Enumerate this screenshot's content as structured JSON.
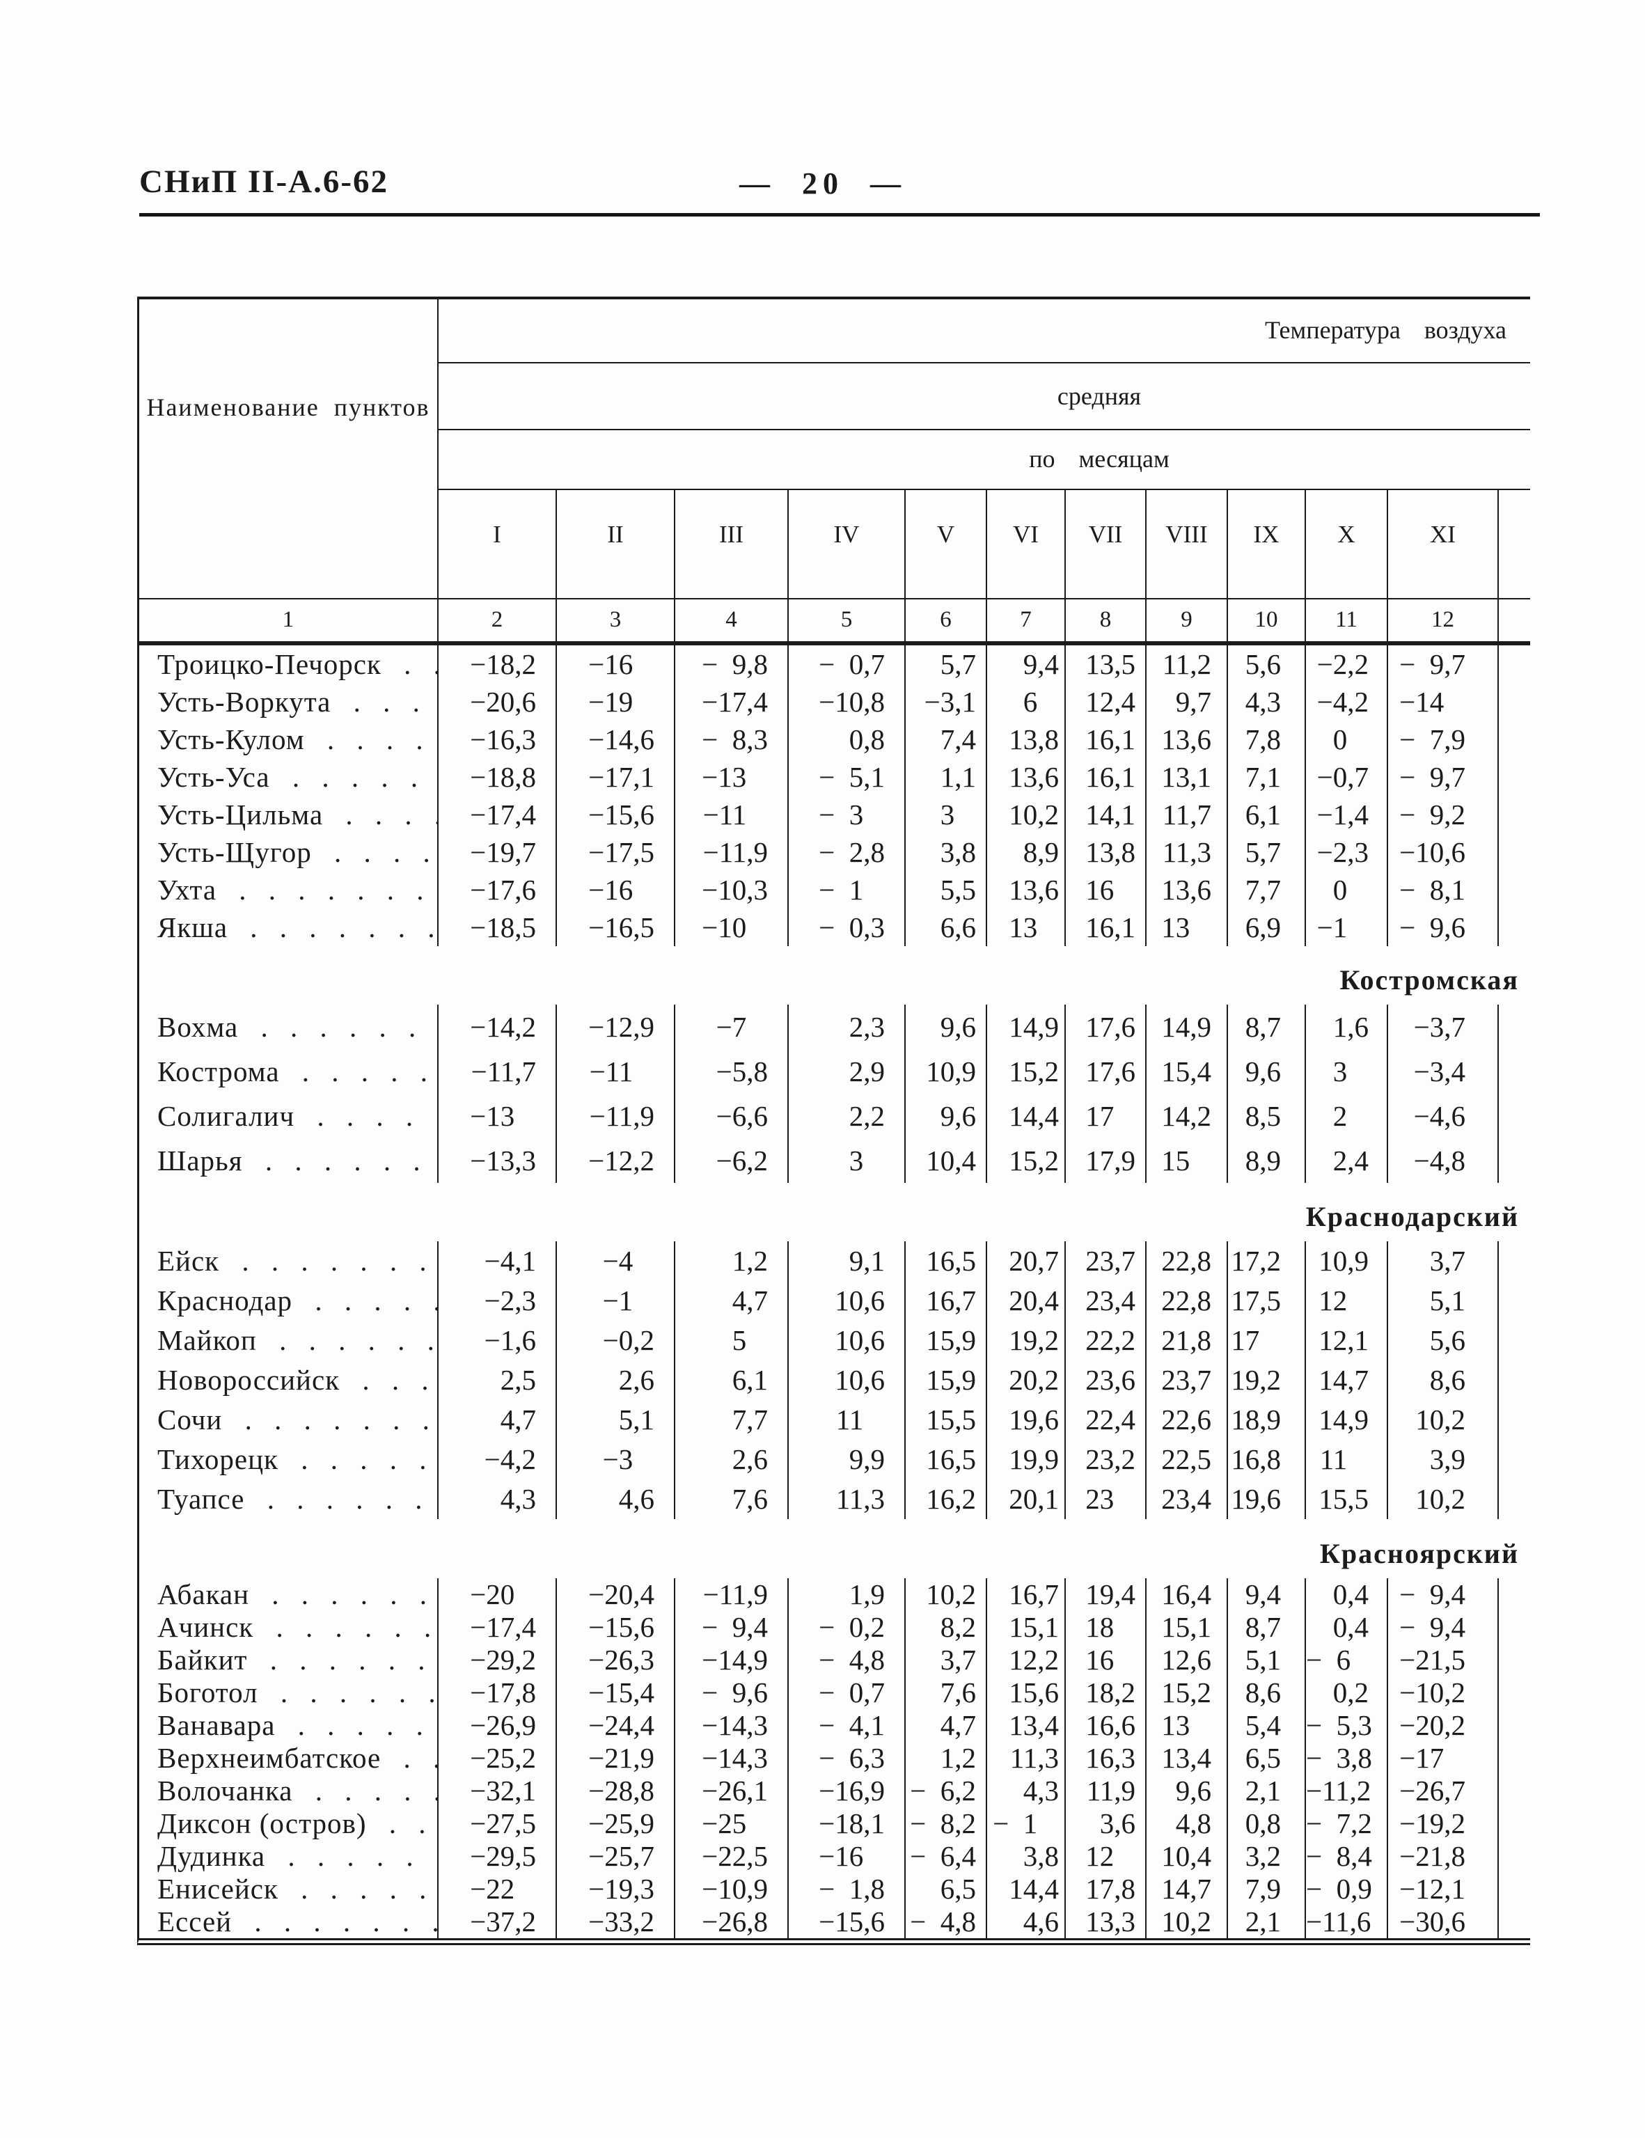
{
  "doc": {
    "code": "СНиП II-А.6-62",
    "page": "—  20  —"
  },
  "table": {
    "name_header": "Наименование  пунктов",
    "temp_header": "Температура  воздуха",
    "avg_header": "средняя",
    "by_months_header": "по  месяцам",
    "months": [
      "I",
      "II",
      "III",
      "IV",
      "V",
      "VI",
      "VII",
      "VIII",
      "IX",
      "X",
      "XI"
    ],
    "col_numbers": [
      "1",
      "2",
      "3",
      "4",
      "5",
      "6",
      "7",
      "8",
      "9",
      "10",
      "11",
      "12"
    ],
    "groups": [
      {
        "label": "",
        "rows": [
          {
            "name": "Троицко-Печорск",
            "values": [
              "−18,2",
              "−16",
              "− 9,8",
              "− 0,7",
              "5,7",
              "9,4",
              "13,5",
              "11,2",
              "5,6",
              "−2,2",
              "− 9,7"
            ]
          },
          {
            "name": "Усть-Воркута",
            "values": [
              "−20,6",
              "−19",
              "−17,4",
              "−10,8",
              "−3,1",
              "6",
              "12,4",
              "9,7",
              "4,3",
              "−4,2",
              "−14"
            ]
          },
          {
            "name": "Усть-Кулом",
            "values": [
              "−16,3",
              "−14,6",
              "− 8,3",
              "0,8",
              "7,4",
              "13,8",
              "16,1",
              "13,6",
              "7,8",
              "0",
              "− 7,9"
            ]
          },
          {
            "name": "Усть-Уса",
            "values": [
              "−18,8",
              "−17,1",
              "−13",
              "− 5,1",
              "1,1",
              "13,6",
              "16,1",
              "13,1",
              "7,1",
              "−0,7",
              "− 9,7"
            ]
          },
          {
            "name": "Усть-Цильма",
            "values": [
              "−17,4",
              "−15,6",
              "−11",
              "− 3",
              "3",
              "10,2",
              "14,1",
              "11,7",
              "6,1",
              "−1,4",
              "− 9,2"
            ]
          },
          {
            "name": "Усть-Щугор",
            "values": [
              "−19,7",
              "−17,5",
              "−11,9",
              "− 2,8",
              "3,8",
              "8,9",
              "13,8",
              "11,3",
              "5,7",
              "−2,3",
              "−10,6"
            ]
          },
          {
            "name": "Ухта",
            "values": [
              "−17,6",
              "−16",
              "−10,3",
              "− 1",
              "5,5",
              "13,6",
              "16",
              "13,6",
              "7,7",
              "0",
              "− 8,1"
            ]
          },
          {
            "name": "Якша",
            "values": [
              "−18,5",
              "−16,5",
              "−10",
              "− 0,3",
              "6,6",
              "13",
              "16,1",
              "13",
              "6,9",
              "−1",
              "− 9,6"
            ]
          }
        ]
      },
      {
        "label": "Костромская",
        "rows": [
          {
            "name": "Вохма",
            "values": [
              "−14,2",
              "−12,9",
              "−7",
              "2,3",
              "9,6",
              "14,9",
              "17,6",
              "14,9",
              "8,7",
              "1,6",
              "−3,7"
            ]
          },
          {
            "name": "Кострома",
            "values": [
              "−11,7",
              "−11",
              "−5,8",
              "2,9",
              "10,9",
              "15,2",
              "17,6",
              "15,4",
              "9,6",
              "3",
              "−3,4"
            ]
          },
          {
            "name": "Солигалич",
            "values": [
              "−13",
              "−11,9",
              "−6,6",
              "2,2",
              "9,6",
              "14,4",
              "17",
              "14,2",
              "8,5",
              "2",
              "−4,6"
            ]
          },
          {
            "name": "Шарья",
            "values": [
              "−13,3",
              "−12,2",
              "−6,2",
              "3",
              "10,4",
              "15,2",
              "17,9",
              "15",
              "8,9",
              "2,4",
              "−4,8"
            ]
          }
        ]
      },
      {
        "label": "Краснодарский",
        "rows": [
          {
            "name": "Ейск",
            "values": [
              "−4,1",
              "−4",
              "1,2",
              "9,1",
              "16,5",
              "20,7",
              "23,7",
              "22,8",
              "17,2",
              "10,9",
              "3,7"
            ]
          },
          {
            "name": "Краснодар",
            "values": [
              "−2,3",
              "−1",
              "4,7",
              "10,6",
              "16,7",
              "20,4",
              "23,4",
              "22,8",
              "17,5",
              "12",
              "5,1"
            ]
          },
          {
            "name": "Майкоп",
            "values": [
              "−1,6",
              "−0,2",
              "5",
              "10,6",
              "15,9",
              "19,2",
              "22,2",
              "21,8",
              "17",
              "12,1",
              "5,6"
            ]
          },
          {
            "name": "Новороссийск",
            "values": [
              "2,5",
              "2,6",
              "6,1",
              "10,6",
              "15,9",
              "20,2",
              "23,6",
              "23,7",
              "19,2",
              "14,7",
              "8,6"
            ]
          },
          {
            "name": "Сочи",
            "values": [
              "4,7",
              "5,1",
              "7,7",
              "11",
              "15,5",
              "19,6",
              "22,4",
              "22,6",
              "18,9",
              "14,9",
              "10,2"
            ]
          },
          {
            "name": "Тихорецк",
            "values": [
              "−4,2",
              "−3",
              "2,6",
              "9,9",
              "16,5",
              "19,9",
              "23,2",
              "22,5",
              "16,8",
              "11",
              "3,9"
            ]
          },
          {
            "name": "Туапсе",
            "values": [
              "4,3",
              "4,6",
              "7,6",
              "11,3",
              "16,2",
              "20,1",
              "23",
              "23,4",
              "19,6",
              "15,5",
              "10,2"
            ]
          }
        ]
      },
      {
        "label": "Красноярский",
        "rows": [
          {
            "name": "Абакан",
            "values": [
              "−20",
              "−20,4",
              "−11,9",
              "1,9",
              "10,2",
              "16,7",
              "19,4",
              "16,4",
              "9,4",
              "0,4",
              "− 9,4"
            ]
          },
          {
            "name": "Ачинск",
            "values": [
              "−17,4",
              "−15,6",
              "− 9,4",
              "− 0,2",
              "8,2",
              "15,1",
              "18",
              "15,1",
              "8,7",
              "0,4",
              "− 9,4"
            ]
          },
          {
            "name": "Байкит",
            "values": [
              "−29,2",
              "−26,3",
              "−14,9",
              "− 4,8",
              "3,7",
              "12,2",
              "16",
              "12,6",
              "5,1",
              "− 6",
              "−21,5"
            ]
          },
          {
            "name": "Боготол",
            "values": [
              "−17,8",
              "−15,4",
              "− 9,6",
              "− 0,7",
              "7,6",
              "15,6",
              "18,2",
              "15,2",
              "8,6",
              "0,2",
              "−10,2"
            ]
          },
          {
            "name": "Ванавара",
            "values": [
              "−26,9",
              "−24,4",
              "−14,3",
              "− 4,1",
              "4,7",
              "13,4",
              "16,6",
              "13",
              "5,4",
              "− 5,3",
              "−20,2"
            ]
          },
          {
            "name": "Верхнеимбатское",
            "values": [
              "−25,2",
              "−21,9",
              "−14,3",
              "− 6,3",
              "1,2",
              "11,3",
              "16,3",
              "13,4",
              "6,5",
              "− 3,8",
              "−17"
            ]
          },
          {
            "name": "Волочанка",
            "values": [
              "−32,1",
              "−28,8",
              "−26,1",
              "−16,9",
              "− 6,2",
              "4,3",
              "11,9",
              "9,6",
              "2,1",
              "−11,2",
              "−26,7"
            ]
          },
          {
            "name": "Диксон (остров)",
            "values": [
              "−27,5",
              "−25,9",
              "−25",
              "−18,1",
              "− 8,2",
              "− 1",
              "3,6",
              "4,8",
              "0,8",
              "− 7,2",
              "−19,2"
            ]
          },
          {
            "name": "Дудинка",
            "values": [
              "−29,5",
              "−25,7",
              "−22,5",
              "−16",
              "− 6,4",
              "3,8",
              "12",
              "10,4",
              "3,2",
              "− 8,4",
              "−21,8"
            ]
          },
          {
            "name": "Енисейск",
            "values": [
              "−22",
              "−19,3",
              "−10,9",
              "− 1,8",
              "6,5",
              "14,4",
              "17,8",
              "14,7",
              "7,9",
              "− 0,9",
              "−12,1"
            ]
          },
          {
            "name": "Ессей",
            "values": [
              "−37,2",
              "−33,2",
              "−26,8",
              "−15,6",
              "− 4,8",
              "4,6",
              "13,3",
              "10,2",
              "2,1",
              "−11,6",
              "−30,6"
            ]
          }
        ]
      }
    ]
  }
}
